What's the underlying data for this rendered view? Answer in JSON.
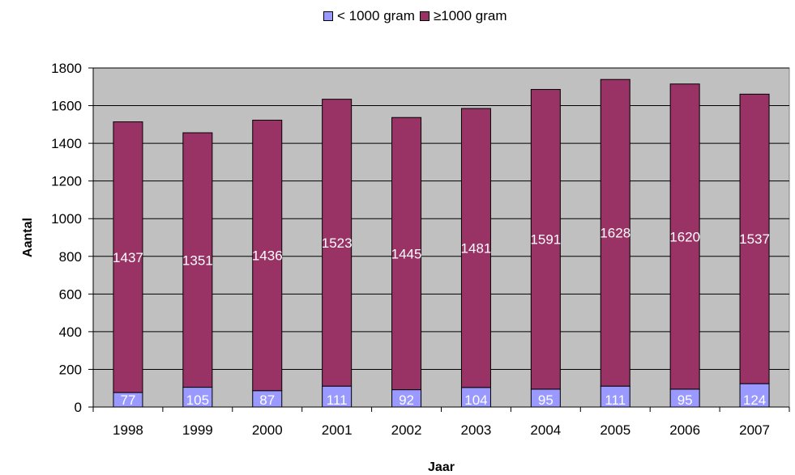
{
  "chart_data": {
    "type": "bar",
    "stacked": true,
    "categories": [
      "1998",
      "1999",
      "2000",
      "2001",
      "2002",
      "2003",
      "2004",
      "2005",
      "2006",
      "2007"
    ],
    "series": [
      {
        "name": "< 1000 gram",
        "color": "#9999ff",
        "values": [
          77,
          105,
          87,
          111,
          92,
          104,
          95,
          111,
          95,
          124
        ]
      },
      {
        "name": "≥1000 gram",
        "color": "#993366",
        "values": [
          1437,
          1351,
          1436,
          1523,
          1445,
          1481,
          1591,
          1628,
          1620,
          1537
        ]
      }
    ],
    "xlabel": "Jaar",
    "ylabel": "Aantal",
    "ylim": [
      0,
      1800
    ],
    "yticks": [
      0,
      200,
      400,
      600,
      800,
      1000,
      1200,
      1400,
      1600,
      1800
    ],
    "grid": true,
    "legend_position": "top-center",
    "plot_background": "#c0c0c0",
    "data_labels": true
  }
}
